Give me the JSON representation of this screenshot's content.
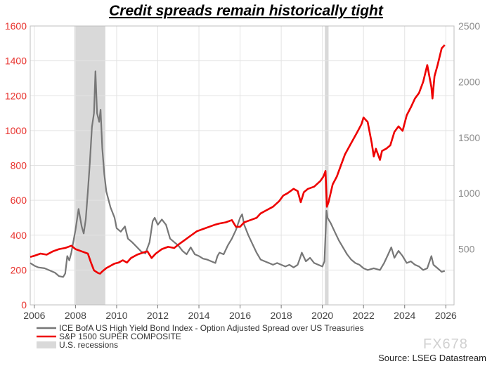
{
  "chart_data": {
    "type": "line",
    "title": "Credit spreads remain historically tight",
    "source": "Source: LSEG Datastream",
    "watermark": "FX678",
    "xlim": [
      2005.8,
      2026.4
    ],
    "x_ticks": [
      "2006",
      "2008",
      "2010",
      "2012",
      "2014",
      "2016",
      "2018",
      "2020",
      "2022",
      "2024",
      "2026"
    ],
    "ylim_left": [
      0,
      1600
    ],
    "yticks_left": [
      "0",
      "200",
      "400",
      "600",
      "800",
      "1000",
      "1200",
      "1400",
      "1600"
    ],
    "ylim_right": [
      0,
      2500
    ],
    "yticks_right": [
      "500",
      "1000",
      "1500",
      "2000",
      "2500"
    ],
    "grid": true,
    "legend_position": "bottom-left",
    "recessions": [
      {
        "start": 2007.95,
        "end": 2009.45
      },
      {
        "start": 2020.12,
        "end": 2020.3
      }
    ],
    "series": [
      {
        "name": "ICE BofA US High Yield Bond Index - Option Adjusted Spread over US Treasuries",
        "axis": "left",
        "color": "#777777",
        "points": [
          [
            2005.8,
            240
          ],
          [
            2006.0,
            225
          ],
          [
            2006.2,
            215
          ],
          [
            2006.5,
            210
          ],
          [
            2006.7,
            200
          ],
          [
            2007.0,
            185
          ],
          [
            2007.2,
            165
          ],
          [
            2007.4,
            160
          ],
          [
            2007.5,
            180
          ],
          [
            2007.6,
            280
          ],
          [
            2007.7,
            255
          ],
          [
            2007.8,
            300
          ],
          [
            2008.0,
            430
          ],
          [
            2008.15,
            550
          ],
          [
            2008.3,
            450
          ],
          [
            2008.4,
            410
          ],
          [
            2008.5,
            490
          ],
          [
            2008.6,
            650
          ],
          [
            2008.7,
            820
          ],
          [
            2008.8,
            1020
          ],
          [
            2008.9,
            1100
          ],
          [
            2008.97,
            1340
          ],
          [
            2009.05,
            1100
          ],
          [
            2009.15,
            1050
          ],
          [
            2009.22,
            1120
          ],
          [
            2009.3,
            900
          ],
          [
            2009.4,
            750
          ],
          [
            2009.5,
            650
          ],
          [
            2009.7,
            560
          ],
          [
            2009.9,
            500
          ],
          [
            2010.0,
            440
          ],
          [
            2010.2,
            420
          ],
          [
            2010.4,
            450
          ],
          [
            2010.55,
            380
          ],
          [
            2010.75,
            360
          ],
          [
            2011.0,
            330
          ],
          [
            2011.2,
            305
          ],
          [
            2011.4,
            295
          ],
          [
            2011.6,
            360
          ],
          [
            2011.75,
            480
          ],
          [
            2011.85,
            500
          ],
          [
            2012.0,
            460
          ],
          [
            2012.2,
            490
          ],
          [
            2012.4,
            460
          ],
          [
            2012.6,
            380
          ],
          [
            2012.8,
            360
          ],
          [
            2013.0,
            340
          ],
          [
            2013.2,
            310
          ],
          [
            2013.4,
            290
          ],
          [
            2013.6,
            330
          ],
          [
            2013.8,
            290
          ],
          [
            2014.0,
            280
          ],
          [
            2014.2,
            265
          ],
          [
            2014.4,
            260
          ],
          [
            2014.6,
            250
          ],
          [
            2014.8,
            240
          ],
          [
            2014.9,
            280
          ],
          [
            2015.0,
            300
          ],
          [
            2015.2,
            290
          ],
          [
            2015.4,
            340
          ],
          [
            2015.6,
            380
          ],
          [
            2015.8,
            430
          ],
          [
            2016.0,
            500
          ],
          [
            2016.1,
            520
          ],
          [
            2016.2,
            460
          ],
          [
            2016.4,
            400
          ],
          [
            2016.6,
            350
          ],
          [
            2016.8,
            300
          ],
          [
            2017.0,
            260
          ],
          [
            2017.2,
            250
          ],
          [
            2017.4,
            240
          ],
          [
            2017.6,
            230
          ],
          [
            2017.8,
            240
          ],
          [
            2018.0,
            230
          ],
          [
            2018.2,
            220
          ],
          [
            2018.4,
            230
          ],
          [
            2018.6,
            215
          ],
          [
            2018.8,
            230
          ],
          [
            2018.95,
            280
          ],
          [
            2019.0,
            300
          ],
          [
            2019.2,
            250
          ],
          [
            2019.4,
            270
          ],
          [
            2019.6,
            240
          ],
          [
            2019.8,
            230
          ],
          [
            2020.0,
            220
          ],
          [
            2020.1,
            250
          ],
          [
            2020.2,
            540
          ],
          [
            2020.25,
            500
          ],
          [
            2020.4,
            470
          ],
          [
            2020.6,
            420
          ],
          [
            2020.8,
            370
          ],
          [
            2021.0,
            330
          ],
          [
            2021.2,
            290
          ],
          [
            2021.4,
            260
          ],
          [
            2021.6,
            240
          ],
          [
            2021.8,
            230
          ],
          [
            2022.0,
            210
          ],
          [
            2022.2,
            200
          ],
          [
            2022.5,
            210
          ],
          [
            2022.8,
            200
          ],
          [
            2023.0,
            240
          ],
          [
            2023.2,
            290
          ],
          [
            2023.35,
            330
          ],
          [
            2023.5,
            270
          ],
          [
            2023.7,
            310
          ],
          [
            2023.9,
            280
          ],
          [
            2024.1,
            240
          ],
          [
            2024.3,
            250
          ],
          [
            2024.5,
            230
          ],
          [
            2024.7,
            220
          ],
          [
            2024.9,
            200
          ],
          [
            2025.1,
            210
          ],
          [
            2025.3,
            280
          ],
          [
            2025.4,
            230
          ],
          [
            2025.6,
            210
          ],
          [
            2025.8,
            190
          ],
          [
            2025.95,
            195
          ]
        ]
      },
      {
        "name": "S&P 1500 SUPER COMPOSITE",
        "axis": "right",
        "color": "#ee0000",
        "points": [
          [
            2005.8,
            430
          ],
          [
            2006.0,
            440
          ],
          [
            2006.3,
            460
          ],
          [
            2006.6,
            450
          ],
          [
            2006.9,
            480
          ],
          [
            2007.2,
            500
          ],
          [
            2007.5,
            510
          ],
          [
            2007.8,
            530
          ],
          [
            2008.0,
            500
          ],
          [
            2008.3,
            480
          ],
          [
            2008.6,
            460
          ],
          [
            2008.75,
            380
          ],
          [
            2008.9,
            310
          ],
          [
            2009.1,
            285
          ],
          [
            2009.2,
            280
          ],
          [
            2009.3,
            300
          ],
          [
            2009.5,
            330
          ],
          [
            2009.7,
            350
          ],
          [
            2009.9,
            370
          ],
          [
            2010.1,
            380
          ],
          [
            2010.3,
            400
          ],
          [
            2010.5,
            380
          ],
          [
            2010.7,
            420
          ],
          [
            2011.0,
            450
          ],
          [
            2011.3,
            470
          ],
          [
            2011.5,
            480
          ],
          [
            2011.7,
            420
          ],
          [
            2011.9,
            460
          ],
          [
            2012.2,
            500
          ],
          [
            2012.5,
            520
          ],
          [
            2012.8,
            510
          ],
          [
            2013.0,
            540
          ],
          [
            2013.3,
            580
          ],
          [
            2013.6,
            620
          ],
          [
            2013.9,
            660
          ],
          [
            2014.2,
            680
          ],
          [
            2014.5,
            700
          ],
          [
            2014.8,
            720
          ],
          [
            2015.0,
            730
          ],
          [
            2015.3,
            740
          ],
          [
            2015.6,
            760
          ],
          [
            2015.8,
            700
          ],
          [
            2016.0,
            700
          ],
          [
            2016.2,
            740
          ],
          [
            2016.5,
            760
          ],
          [
            2016.8,
            780
          ],
          [
            2017.0,
            820
          ],
          [
            2017.3,
            850
          ],
          [
            2017.6,
            880
          ],
          [
            2017.9,
            930
          ],
          [
            2018.1,
            980
          ],
          [
            2018.3,
            1000
          ],
          [
            2018.6,
            1040
          ],
          [
            2018.8,
            1020
          ],
          [
            2018.95,
            920
          ],
          [
            2019.1,
            1010
          ],
          [
            2019.3,
            1040
          ],
          [
            2019.6,
            1060
          ],
          [
            2019.9,
            1110
          ],
          [
            2020.05,
            1150
          ],
          [
            2020.15,
            1200
          ],
          [
            2020.22,
            880
          ],
          [
            2020.3,
            920
          ],
          [
            2020.5,
            1080
          ],
          [
            2020.7,
            1150
          ],
          [
            2020.9,
            1250
          ],
          [
            2021.1,
            1350
          ],
          [
            2021.4,
            1450
          ],
          [
            2021.7,
            1550
          ],
          [
            2021.9,
            1620
          ],
          [
            2022.0,
            1680
          ],
          [
            2022.2,
            1640
          ],
          [
            2022.4,
            1450
          ],
          [
            2022.5,
            1330
          ],
          [
            2022.6,
            1400
          ],
          [
            2022.8,
            1300
          ],
          [
            2022.9,
            1380
          ],
          [
            2023.1,
            1400
          ],
          [
            2023.3,
            1430
          ],
          [
            2023.5,
            1550
          ],
          [
            2023.7,
            1600
          ],
          [
            2023.9,
            1560
          ],
          [
            2024.1,
            1700
          ],
          [
            2024.3,
            1770
          ],
          [
            2024.5,
            1850
          ],
          [
            2024.7,
            1900
          ],
          [
            2024.9,
            2000
          ],
          [
            2025.1,
            2150
          ],
          [
            2025.3,
            1950
          ],
          [
            2025.35,
            1850
          ],
          [
            2025.45,
            2050
          ],
          [
            2025.6,
            2150
          ],
          [
            2025.8,
            2300
          ],
          [
            2025.95,
            2330
          ]
        ]
      }
    ],
    "legend": [
      {
        "label": "ICE BofA US High Yield Bond Index - Option Adjusted Spread over US Treasuries",
        "kind": "line",
        "color": "#777777"
      },
      {
        "label": "S&P 1500 SUPER COMPOSITE",
        "kind": "line",
        "color": "#ee0000"
      },
      {
        "label": "U.S. recessions",
        "kind": "box",
        "color": "#d9d9d9"
      }
    ]
  }
}
